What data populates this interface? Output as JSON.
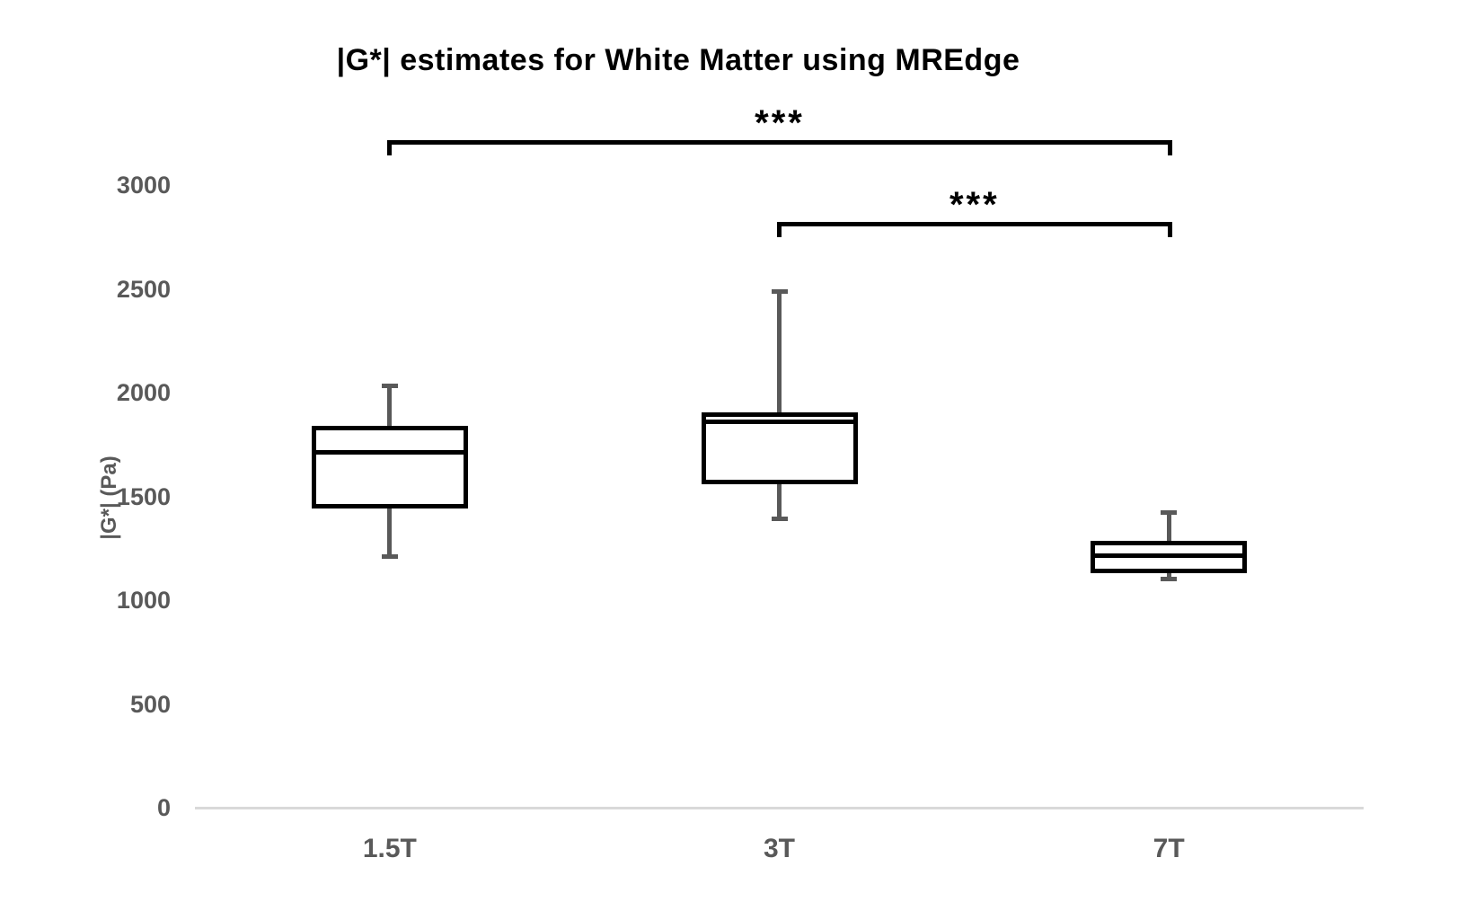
{
  "page": {
    "background": "#ffffff"
  },
  "chart_data": {
    "type": "boxplot",
    "title": "|G*| estimates for White Matter using MREdge",
    "ylabel": "|G*| (Pa)",
    "xlabel": "",
    "categories": [
      "1.5T",
      "3T",
      "7T"
    ],
    "yticks": [
      0,
      500,
      1000,
      1500,
      2000,
      2500,
      3000
    ],
    "ylim": [
      0,
      3200
    ],
    "grid": false,
    "legend": "none",
    "series": [
      {
        "category": "1.5T",
        "whisker_low": 1200,
        "q1": 1440,
        "median": 1710,
        "q3": 1840,
        "whisker_high": 2045
      },
      {
        "category": "3T",
        "whisker_low": 1380,
        "q1": 1560,
        "median": 1860,
        "q3": 1905,
        "whisker_high": 2500
      },
      {
        "category": "7T",
        "whisker_low": 1090,
        "q1": 1130,
        "median": 1215,
        "q3": 1285,
        "whisker_high": 1435
      }
    ],
    "annotations": [
      {
        "type": "significance-bracket",
        "between": [
          "1.5T",
          "7T"
        ],
        "label": "***"
      },
      {
        "type": "significance-bracket",
        "between": [
          "3T",
          "7T"
        ],
        "label": "***"
      }
    ],
    "colors": {
      "title_text": "#000000",
      "axis_text": "#595959",
      "axis_line": "#d9d9d9",
      "box_stroke": "#000000",
      "box_fill": "#ffffff",
      "whisker": "#595959",
      "annotation": "#000000"
    }
  }
}
